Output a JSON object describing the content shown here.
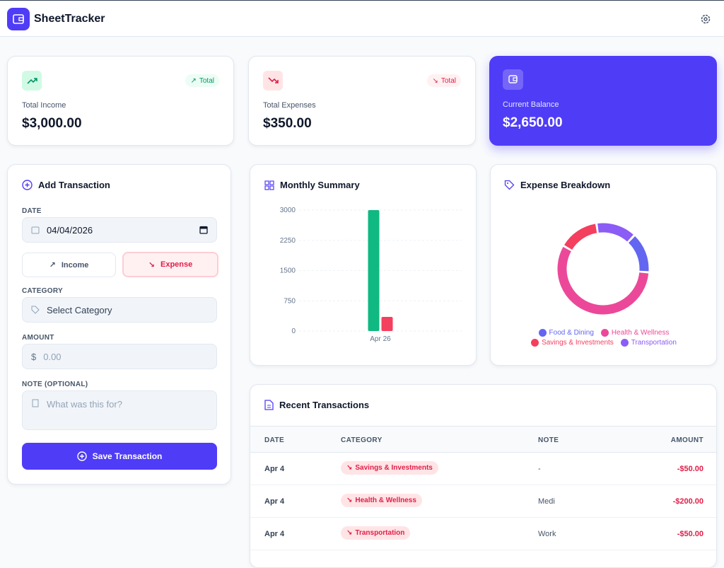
{
  "header": {
    "app_name": "SheetTracker"
  },
  "summary": [
    {
      "label": "Total Income",
      "value": "$3,000.00",
      "badge": "Total"
    },
    {
      "label": "Total Expenses",
      "value": "$350.00",
      "badge": "Total"
    },
    {
      "label": "Current Balance",
      "value": "$2,650.00"
    }
  ],
  "form": {
    "title": "Add Transaction",
    "date_label": "DATE",
    "date_value": "04/04/2026",
    "income_button": "Income",
    "expense_button": "Expense",
    "category_label": "CATEGORY",
    "category_placeholder": "Select Category",
    "amount_label": "AMOUNT",
    "currency_symbol": "$",
    "amount_placeholder": "0.00",
    "note_label": "NOTE (OPTIONAL)",
    "note_placeholder": "What was this for?",
    "submit": "Save Transaction"
  },
  "chart_data": [
    {
      "type": "bar",
      "title": "Monthly Summary",
      "categories": [
        "Apr 26"
      ],
      "series": [
        {
          "color": "#10b981",
          "values": [
            3000
          ]
        },
        {
          "color": "#f43f5e",
          "values": [
            350
          ]
        }
      ],
      "ylim": [
        0,
        3000
      ],
      "yticks": [
        0,
        750,
        1500,
        2250,
        3000
      ],
      "grid": true
    },
    {
      "type": "pie",
      "title": "Expense Breakdown",
      "donut": true,
      "categories": [
        "Food & Dining",
        "Health & Wellness",
        "Savings & Investments",
        "Transportation"
      ],
      "values": [
        50,
        200,
        50,
        50
      ],
      "colors": [
        "#6366f1",
        "#ec4899",
        "#f43f5e",
        "#8b5cf6"
      ]
    }
  ],
  "transactions": {
    "title": "Recent Transactions",
    "columns": [
      "DATE",
      "CATEGORY",
      "NOTE",
      "AMOUNT"
    ],
    "rows": [
      [
        "Apr 4",
        "Savings & Investments",
        "-",
        "-$50.00"
      ],
      [
        "Apr 4",
        "Health & Wellness",
        "Medi",
        "-$200.00"
      ],
      [
        "Apr 4",
        "Transportation",
        "Work",
        "-$50.00"
      ]
    ]
  }
}
